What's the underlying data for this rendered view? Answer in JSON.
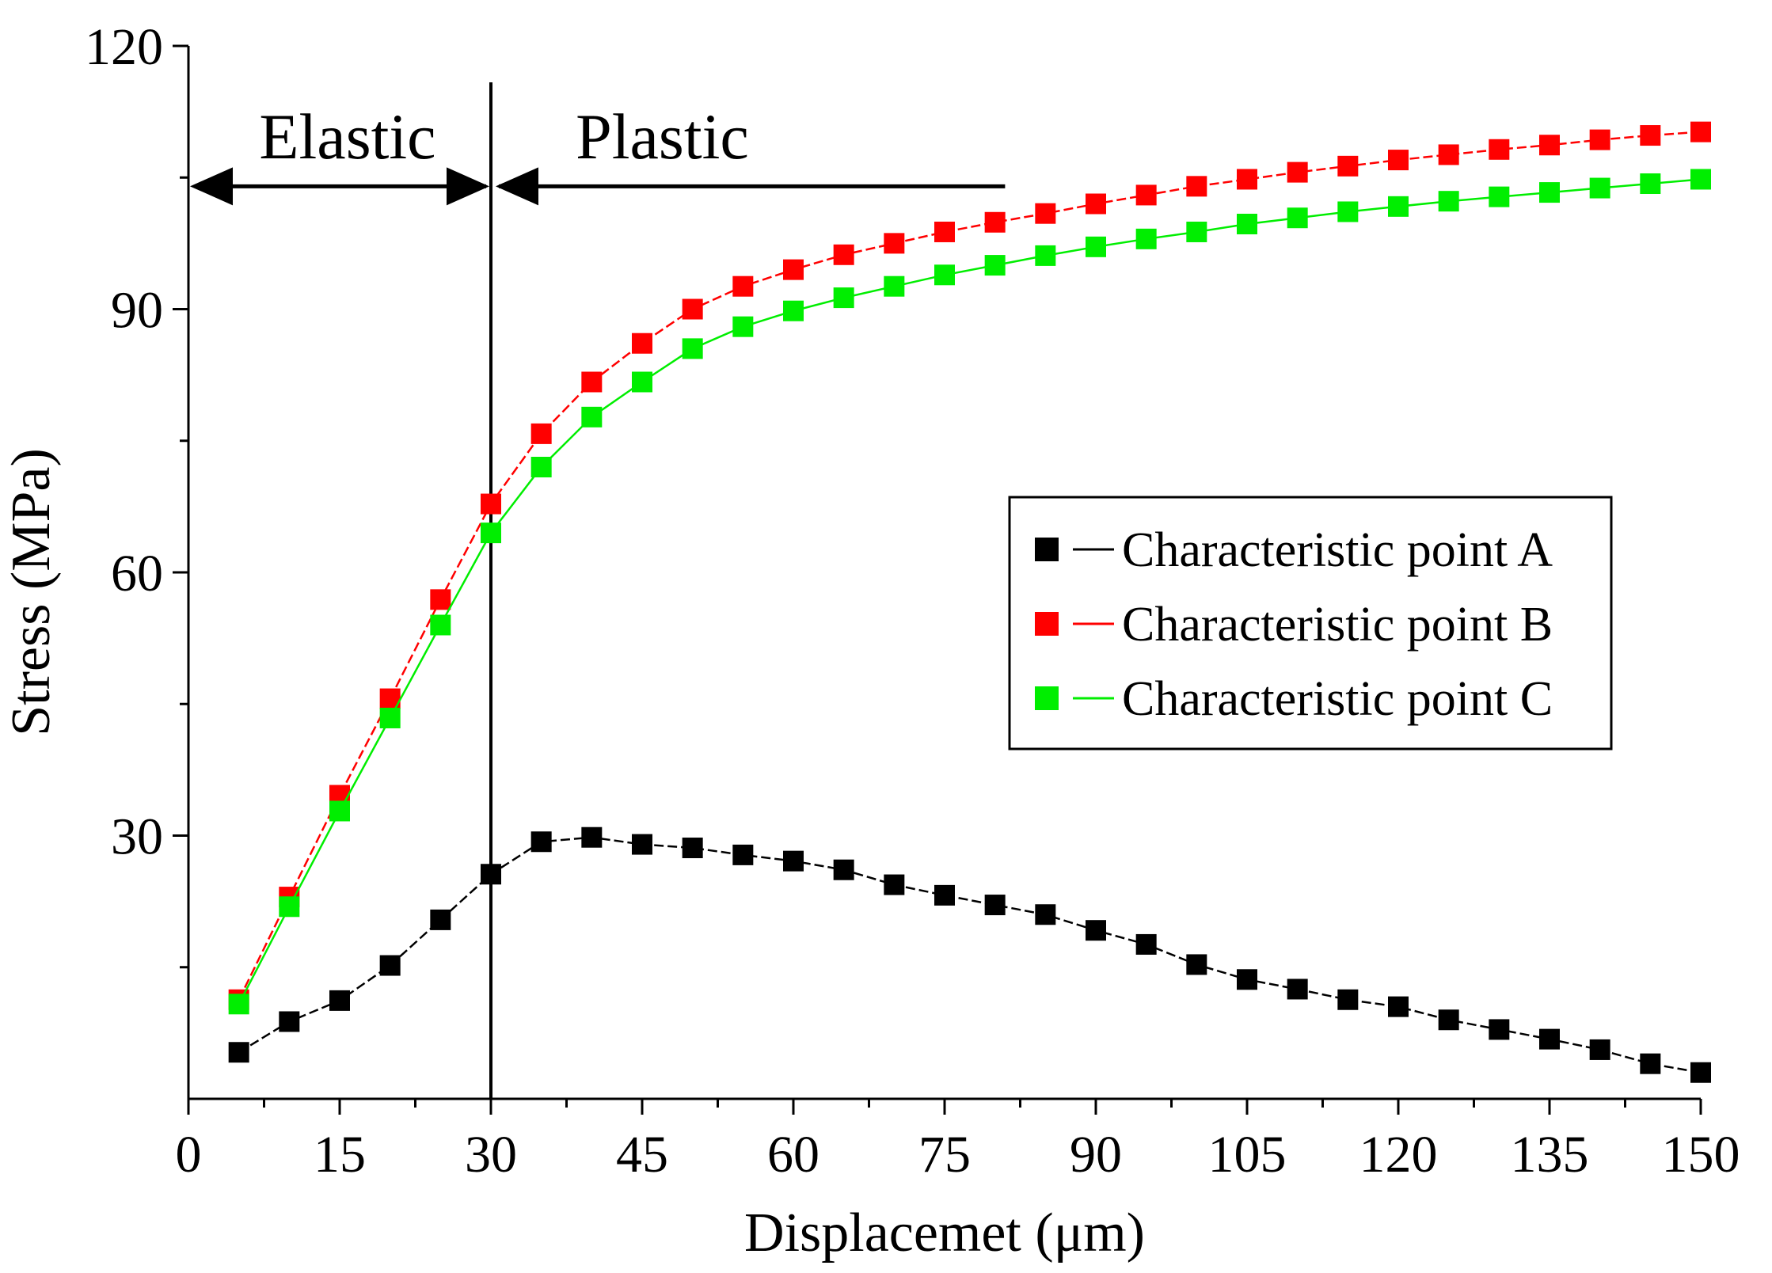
{
  "chart_data": {
    "type": "line",
    "title": "",
    "xlabel": "Displacemet (μm)",
    "ylabel": "Stress (MPa)",
    "xlim": [
      0,
      150
    ],
    "ylim": [
      0,
      120
    ],
    "xticks": [
      "0",
      "15",
      "30",
      "45",
      "60",
      "75",
      "90",
      "105",
      "120",
      "135",
      "150"
    ],
    "yticks": [
      "30",
      "60",
      "90",
      "120"
    ],
    "grid": false,
    "legend_position": "center-right",
    "annotations": {
      "elastic_label": "Elastic",
      "plastic_label": "Plastic",
      "boundary_x": 30,
      "elastic_arrow": [
        0,
        30
      ],
      "plastic_arrow": [
        30,
        81
      ],
      "arrow_y": 104
    },
    "x": [
      5,
      10,
      15,
      20,
      25,
      30,
      35,
      40,
      45,
      50,
      55,
      60,
      65,
      70,
      75,
      80,
      85,
      90,
      95,
      100,
      105,
      110,
      115,
      120,
      125,
      130,
      135,
      140,
      145,
      150
    ],
    "series": [
      {
        "name": "Characteristic point A",
        "color": "#000000",
        "dashed": true,
        "values": [
          5.3,
          8.8,
          11.2,
          15.2,
          20.4,
          25.6,
          29.3,
          29.8,
          29.0,
          28.6,
          27.8,
          27.1,
          26.1,
          24.4,
          23.2,
          22.1,
          21.0,
          19.2,
          17.6,
          15.3,
          13.6,
          12.5,
          11.3,
          10.5,
          9.0,
          7.9,
          6.8,
          5.6,
          4.0,
          3.0
        ]
      },
      {
        "name": "Characteristic point B",
        "color": "#ff0000",
        "dashed": true,
        "values": [
          11.3,
          23.0,
          34.6,
          45.6,
          56.9,
          67.8,
          75.8,
          81.7,
          86.1,
          90.0,
          92.6,
          94.5,
          96.2,
          97.5,
          98.8,
          99.9,
          100.9,
          102.0,
          103.0,
          104.0,
          104.8,
          105.6,
          106.3,
          107.0,
          107.6,
          108.2,
          108.7,
          109.3,
          109.8,
          110.2
        ]
      },
      {
        "name": "Characteristic point C",
        "color": "#00ee00",
        "dashed": false,
        "values": [
          10.8,
          21.9,
          32.8,
          43.4,
          54.0,
          64.5,
          72.0,
          77.7,
          81.7,
          85.5,
          88.0,
          89.8,
          91.3,
          92.6,
          93.9,
          95.0,
          96.1,
          97.1,
          98.0,
          98.8,
          99.7,
          100.4,
          101.1,
          101.7,
          102.3,
          102.8,
          103.3,
          103.8,
          104.3,
          104.8
        ]
      }
    ]
  }
}
